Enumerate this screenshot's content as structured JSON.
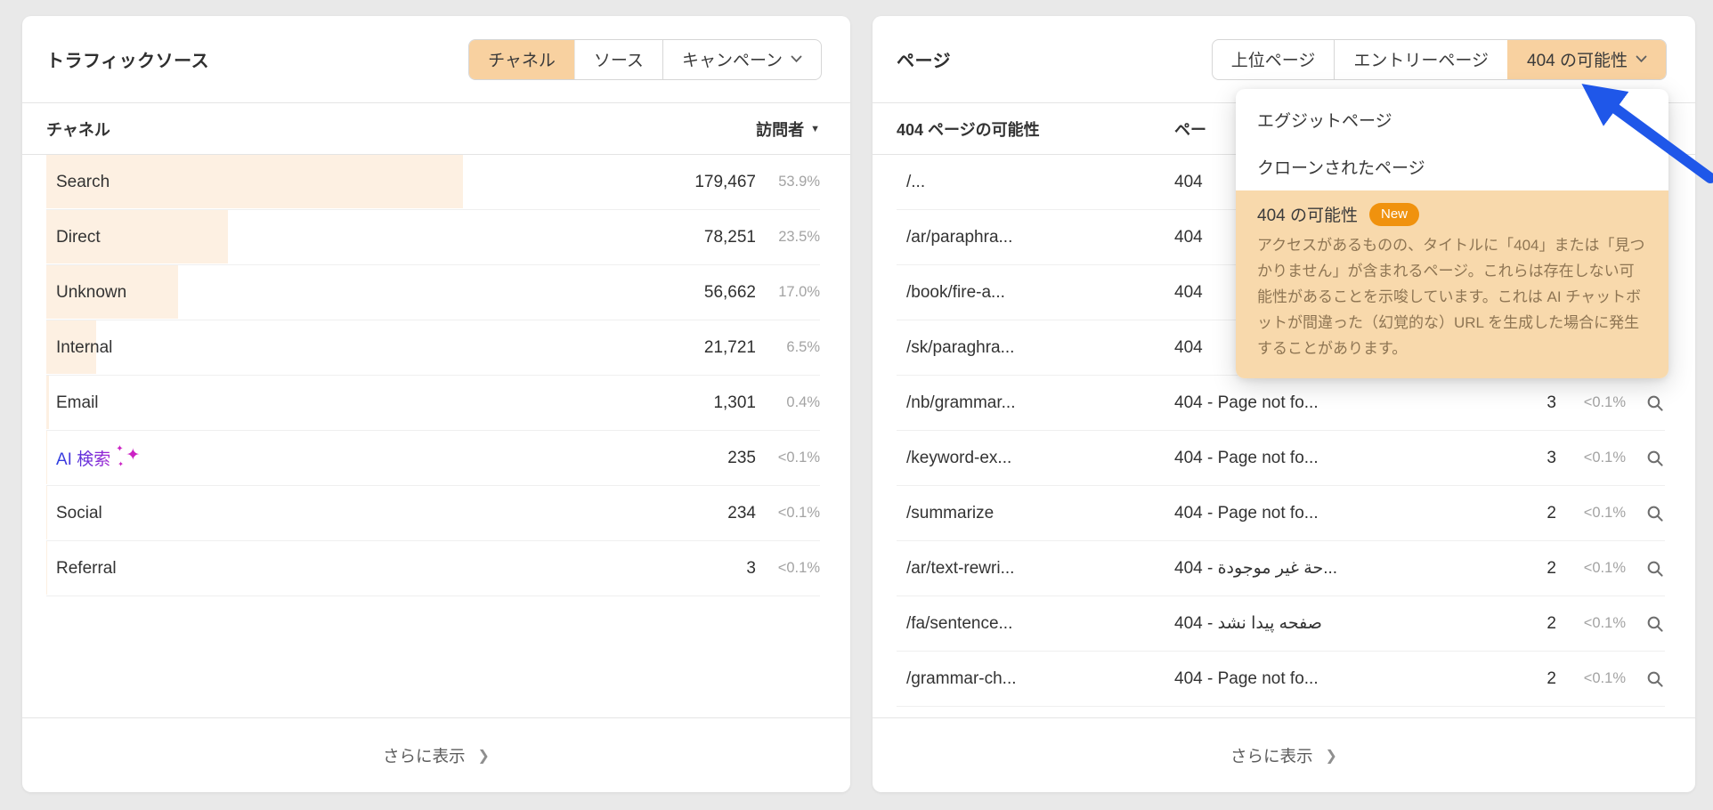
{
  "left_panel": {
    "title": "トラフィックソース",
    "tabs": [
      {
        "key": "channel",
        "label": "チャネル",
        "active": true,
        "chevron": false
      },
      {
        "key": "source",
        "label": "ソース",
        "active": false,
        "chevron": false
      },
      {
        "key": "campaign",
        "label": "キャンペーン",
        "active": false,
        "chevron": true
      }
    ],
    "table": {
      "col_channel": "チャネル",
      "col_visitors": "訪問者",
      "rows": [
        {
          "label": "Search",
          "value": "179,467",
          "pct": "53.9%",
          "bar": 53.9,
          "ai": false
        },
        {
          "label": "Direct",
          "value": "78,251",
          "pct": "23.5%",
          "bar": 23.5,
          "ai": false
        },
        {
          "label": "Unknown",
          "value": "56,662",
          "pct": "17.0%",
          "bar": 17.0,
          "ai": false
        },
        {
          "label": "Internal",
          "value": "21,721",
          "pct": "6.5%",
          "bar": 6.5,
          "ai": false
        },
        {
          "label": "Email",
          "value": "1,301",
          "pct": "0.4%",
          "bar": 0.4,
          "ai": false
        },
        {
          "label": "AI 検索",
          "value": "235",
          "pct": "<0.1%",
          "bar": 0.1,
          "ai": true
        },
        {
          "label": "Social",
          "value": "234",
          "pct": "<0.1%",
          "bar": 0.1,
          "ai": false
        },
        {
          "label": "Referral",
          "value": "3",
          "pct": "<0.1%",
          "bar": 0.05,
          "ai": false
        }
      ]
    },
    "footer": "さらに表示"
  },
  "right_panel": {
    "title": "ページ",
    "tabs": [
      {
        "key": "top-pages",
        "label": "上位ページ",
        "active": false,
        "chevron": false
      },
      {
        "key": "entry-pages",
        "label": "エントリーページ",
        "active": false,
        "chevron": false
      },
      {
        "key": "404-potential",
        "label": "404 の可能性",
        "active": true,
        "chevron": true
      }
    ],
    "table": {
      "col_url": "404 ページの可能性",
      "col_title": "ペー",
      "rows": [
        {
          "url": "/...",
          "title": "404"
        },
        {
          "url": "/ar/paraphra...",
          "title": "404"
        },
        {
          "url": "/book/fire-a...",
          "title": "404"
        },
        {
          "url": "/sk/paraghra...",
          "title": "404"
        },
        {
          "url": "/nb/grammar...",
          "title": "404 - Page not fo...",
          "count": "3",
          "pct": "<0.1%"
        },
        {
          "url": "/keyword-ex...",
          "title": "404 - Page not fo...",
          "count": "3",
          "pct": "<0.1%"
        },
        {
          "url": "/summarize",
          "title": "404 - Page not fo...",
          "count": "2",
          "pct": "<0.1%"
        },
        {
          "url": "/ar/text-rewri...",
          "title": "404 - حة غير موجودة...",
          "count": "2",
          "pct": "<0.1%"
        },
        {
          "url": "/fa/sentence...",
          "title": "404 - صفحه پیدا نشد",
          "count": "2",
          "pct": "<0.1%"
        },
        {
          "url": "/grammar-ch...",
          "title": "404 - Page not fo...",
          "count": "2",
          "pct": "<0.1%"
        }
      ]
    },
    "footer": "さらに表示"
  },
  "dropdown": {
    "items": [
      {
        "key": "exit-pages",
        "label": "エグジットページ"
      },
      {
        "key": "cloned-pages",
        "label": "クローンされたページ"
      }
    ],
    "highlight": {
      "label": "404 の可能性",
      "badge": "New",
      "description": "アクセスがあるものの、タイトルに「404」または「見つかりません」が含まれるページ。これらは存在しない可能性があることを示唆しています。これは AI チャットボットが間違った（幻覚的な）URL を生成した場合に発生することがあります。"
    }
  },
  "icons": {
    "sort_desc": "▼",
    "footer_chevron": "❯",
    "sparkle": "✦"
  },
  "colors": {
    "page_bg": "#e9e9e9",
    "active_tab_bg": "#f8d1a0",
    "row_bar": "#fdf0e2",
    "highlight_bg": "#f8d9ac",
    "badge_bg": "#f0920e",
    "arrow_blue": "#1f57e9",
    "ai_gradient_start": "#2b3fe0",
    "ai_gradient_end": "#a526d2"
  }
}
